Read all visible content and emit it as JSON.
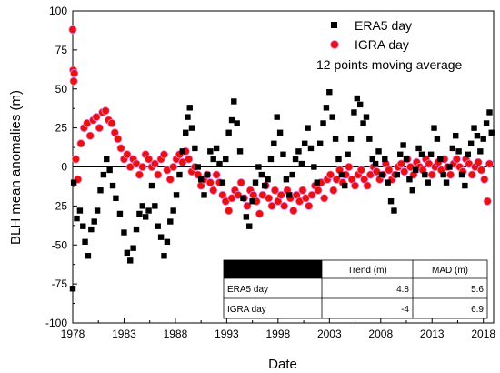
{
  "chart_data": {
    "type": "scatter",
    "xlabel": "Date",
    "ylabel": "BLH mean anomalies (m)",
    "xlim": [
      1978,
      2019
    ],
    "ylim": [
      -100,
      100
    ],
    "x_ticks": [
      1978,
      1983,
      1988,
      1993,
      1998,
      2003,
      2008,
      2013,
      2018
    ],
    "y_ticks": [
      100,
      75,
      50,
      25,
      0,
      -25,
      -50,
      -75,
      -100
    ],
    "legend": {
      "position": "top-right",
      "entries": [
        "ERA5 day",
        "IGRA day"
      ],
      "note": "12 points moving average"
    },
    "series": [
      {
        "name": "ERA5 day",
        "marker": "square",
        "color": "#000000",
        "points": [
          [
            1978.0,
            -78
          ],
          [
            1978.1,
            -10
          ],
          [
            1978.4,
            -33
          ],
          [
            1978.7,
            -28
          ],
          [
            1979.0,
            -38
          ],
          [
            1979.2,
            -48
          ],
          [
            1979.5,
            -57
          ],
          [
            1979.8,
            -40
          ],
          [
            1980.1,
            -35
          ],
          [
            1980.4,
            -28
          ],
          [
            1980.7,
            -15
          ],
          [
            1981.0,
            -5
          ],
          [
            1981.3,
            5
          ],
          [
            1981.6,
            -2
          ],
          [
            1981.9,
            -12
          ],
          [
            1982.2,
            -20
          ],
          [
            1982.6,
            -30
          ],
          [
            1983.0,
            -42
          ],
          [
            1983.3,
            -55
          ],
          [
            1983.6,
            -60
          ],
          [
            1983.9,
            -52
          ],
          [
            1984.2,
            -40
          ],
          [
            1984.5,
            -30
          ],
          [
            1984.8,
            -25
          ],
          [
            1985.1,
            -32
          ],
          [
            1985.4,
            -28
          ],
          [
            1985.7,
            -12
          ],
          [
            1986.0,
            -25
          ],
          [
            1986.3,
            -38
          ],
          [
            1986.6,
            -45
          ],
          [
            1986.9,
            -57
          ],
          [
            1987.2,
            -48
          ],
          [
            1987.5,
            -35
          ],
          [
            1987.8,
            -28
          ],
          [
            1988.1,
            -18
          ],
          [
            1988.4,
            -5
          ],
          [
            1988.7,
            10
          ],
          [
            1989.0,
            22
          ],
          [
            1989.2,
            32
          ],
          [
            1989.4,
            38
          ],
          [
            1989.6,
            25
          ],
          [
            1989.9,
            12
          ],
          [
            1990.2,
            0
          ],
          [
            1990.5,
            -8
          ],
          [
            1990.8,
            -18
          ],
          [
            1991.1,
            -5
          ],
          [
            1991.4,
            10
          ],
          [
            1991.7,
            5
          ],
          [
            1992.0,
            12
          ],
          [
            1992.3,
            2
          ],
          [
            1992.6,
            -10
          ],
          [
            1992.9,
            5
          ],
          [
            1993.2,
            22
          ],
          [
            1993.5,
            30
          ],
          [
            1993.7,
            42
          ],
          [
            1994.0,
            28
          ],
          [
            1994.3,
            10
          ],
          [
            1994.6,
            -20
          ],
          [
            1994.9,
            -32
          ],
          [
            1995.2,
            -38
          ],
          [
            1995.5,
            -22
          ],
          [
            1995.8,
            -10
          ],
          [
            1996.1,
            0
          ],
          [
            1996.4,
            -5
          ],
          [
            1996.7,
            -12
          ],
          [
            1997.0,
            -8
          ],
          [
            1997.3,
            5
          ],
          [
            1997.6,
            15
          ],
          [
            1997.9,
            32
          ],
          [
            1998.2,
            22
          ],
          [
            1998.5,
            8
          ],
          [
            1998.8,
            -8
          ],
          [
            1999.1,
            -18
          ],
          [
            1999.4,
            -5
          ],
          [
            1999.7,
            5
          ],
          [
            2000.0,
            10
          ],
          [
            2000.3,
            2
          ],
          [
            2000.6,
            15
          ],
          [
            2000.9,
            25
          ],
          [
            2001.2,
            12
          ],
          [
            2001.5,
            0
          ],
          [
            2001.8,
            -10
          ],
          [
            2002.1,
            15
          ],
          [
            2002.4,
            28
          ],
          [
            2002.7,
            38
          ],
          [
            2003.0,
            48
          ],
          [
            2003.3,
            32
          ],
          [
            2003.6,
            18
          ],
          [
            2003.9,
            5
          ],
          [
            2004.2,
            -5
          ],
          [
            2004.5,
            -12
          ],
          [
            2004.8,
            8
          ],
          [
            2005.1,
            18
          ],
          [
            2005.4,
            35
          ],
          [
            2005.7,
            44
          ],
          [
            2006.0,
            40
          ],
          [
            2006.3,
            28
          ],
          [
            2006.6,
            32
          ],
          [
            2006.9,
            18
          ],
          [
            2007.2,
            5
          ],
          [
            2007.5,
            2
          ],
          [
            2007.8,
            10
          ],
          [
            2008.1,
            -5
          ],
          [
            2008.4,
            5
          ],
          [
            2008.7,
            -10
          ],
          [
            2009.0,
            -22
          ],
          [
            2009.3,
            -28
          ],
          [
            2009.6,
            -5
          ],
          [
            2009.9,
            8
          ],
          [
            2010.2,
            14
          ],
          [
            2010.5,
            5
          ],
          [
            2010.8,
            -8
          ],
          [
            2011.1,
            -15
          ],
          [
            2011.4,
            -2
          ],
          [
            2011.7,
            12
          ],
          [
            2012.0,
            8
          ],
          [
            2012.3,
            -5
          ],
          [
            2012.6,
            -10
          ],
          [
            2012.9,
            8
          ],
          [
            2013.2,
            25
          ],
          [
            2013.5,
            18
          ],
          [
            2013.8,
            5
          ],
          [
            2014.1,
            -5
          ],
          [
            2014.4,
            -10
          ],
          [
            2014.7,
            0
          ],
          [
            2015.0,
            12
          ],
          [
            2015.3,
            20
          ],
          [
            2015.6,
            10
          ],
          [
            2015.9,
            -5
          ],
          [
            2016.2,
            -12
          ],
          [
            2016.5,
            8
          ],
          [
            2016.8,
            15
          ],
          [
            2017.1,
            25
          ],
          [
            2017.4,
            20
          ],
          [
            2017.7,
            10
          ],
          [
            2018.0,
            18
          ],
          [
            2018.3,
            28
          ],
          [
            2018.6,
            35
          ],
          [
            2018.8,
            22
          ]
        ]
      },
      {
        "name": "IGRA day",
        "marker": "circle",
        "color": "#e8120c",
        "points": [
          [
            1978.0,
            88
          ],
          [
            1978.05,
            62
          ],
          [
            1978.1,
            55
          ],
          [
            1978.15,
            60
          ],
          [
            1978.3,
            5
          ],
          [
            1978.5,
            -8
          ],
          [
            1978.8,
            15
          ],
          [
            1979.1,
            25
          ],
          [
            1979.4,
            28
          ],
          [
            1979.7,
            20
          ],
          [
            1980.0,
            30
          ],
          [
            1980.3,
            32
          ],
          [
            1980.6,
            25
          ],
          [
            1980.9,
            35
          ],
          [
            1981.2,
            36
          ],
          [
            1981.5,
            30
          ],
          [
            1981.8,
            28
          ],
          [
            1982.1,
            22
          ],
          [
            1982.4,
            18
          ],
          [
            1982.7,
            12
          ],
          [
            1983.0,
            5
          ],
          [
            1983.3,
            8
          ],
          [
            1983.6,
            0
          ],
          [
            1983.9,
            5
          ],
          [
            1984.2,
            2
          ],
          [
            1984.5,
            -5
          ],
          [
            1984.8,
            0
          ],
          [
            1985.1,
            8
          ],
          [
            1985.4,
            5
          ],
          [
            1985.7,
            0
          ],
          [
            1986.0,
            2
          ],
          [
            1986.3,
            -5
          ],
          [
            1986.6,
            5
          ],
          [
            1986.9,
            8
          ],
          [
            1987.2,
            -2
          ],
          [
            1987.5,
            -8
          ],
          [
            1987.8,
            0
          ],
          [
            1988.1,
            5
          ],
          [
            1988.4,
            8
          ],
          [
            1988.7,
            3
          ],
          [
            1989.0,
            10
          ],
          [
            1989.3,
            5
          ],
          [
            1989.6,
            -3
          ],
          [
            1989.9,
            0
          ],
          [
            1990.2,
            -5
          ],
          [
            1990.5,
            -12
          ],
          [
            1990.8,
            -8
          ],
          [
            1991.1,
            -5
          ],
          [
            1991.4,
            -10
          ],
          [
            1991.7,
            -15
          ],
          [
            1992.0,
            -5
          ],
          [
            1992.3,
            -10
          ],
          [
            1992.6,
            -18
          ],
          [
            1992.9,
            -22
          ],
          [
            1993.2,
            -28
          ],
          [
            1993.5,
            -20
          ],
          [
            1993.8,
            -15
          ],
          [
            1994.1,
            -18
          ],
          [
            1994.4,
            -10
          ],
          [
            1994.7,
            -20
          ],
          [
            1995.0,
            -25
          ],
          [
            1995.3,
            -15
          ],
          [
            1995.6,
            -18
          ],
          [
            1995.9,
            -22
          ],
          [
            1996.2,
            -30
          ],
          [
            1996.5,
            -18
          ],
          [
            1996.8,
            -12
          ],
          [
            1997.1,
            -20
          ],
          [
            1997.4,
            -25
          ],
          [
            1997.7,
            -15
          ],
          [
            1998.0,
            -22
          ],
          [
            1998.3,
            -18
          ],
          [
            1998.6,
            -25
          ],
          [
            1998.9,
            -15
          ],
          [
            1999.2,
            -20
          ],
          [
            1999.5,
            -28
          ],
          [
            1999.8,
            -18
          ],
          [
            2000.1,
            -22
          ],
          [
            2000.4,
            -15
          ],
          [
            2000.7,
            -20
          ],
          [
            2001.0,
            -25
          ],
          [
            2001.3,
            -18
          ],
          [
            2001.6,
            -12
          ],
          [
            2001.9,
            -15
          ],
          [
            2002.2,
            -10
          ],
          [
            2002.5,
            -20
          ],
          [
            2002.8,
            -8
          ],
          [
            2003.1,
            -5
          ],
          [
            2003.4,
            -15
          ],
          [
            2003.7,
            -8
          ],
          [
            2004.0,
            -2
          ],
          [
            2004.3,
            -10
          ],
          [
            2004.6,
            -5
          ],
          [
            2004.9,
            0
          ],
          [
            2005.2,
            -8
          ],
          [
            2005.5,
            -12
          ],
          [
            2005.8,
            -5
          ],
          [
            2006.1,
            -2
          ],
          [
            2006.4,
            -8
          ],
          [
            2006.7,
            -12
          ],
          [
            2007.0,
            -5
          ],
          [
            2007.3,
            0
          ],
          [
            2007.6,
            -3
          ],
          [
            2007.9,
            -8
          ],
          [
            2008.2,
            -5
          ],
          [
            2008.5,
            2
          ],
          [
            2008.8,
            -2
          ],
          [
            2009.1,
            -8
          ],
          [
            2009.4,
            -5
          ],
          [
            2009.7,
            0
          ],
          [
            2010.0,
            2
          ],
          [
            2010.3,
            -3
          ],
          [
            2010.6,
            5
          ],
          [
            2010.9,
            0
          ],
          [
            2011.2,
            -5
          ],
          [
            2011.5,
            3
          ],
          [
            2011.8,
            0
          ],
          [
            2012.1,
            -2
          ],
          [
            2012.4,
            5
          ],
          [
            2012.7,
            2
          ],
          [
            2013.0,
            -5
          ],
          [
            2013.3,
            0
          ],
          [
            2013.6,
            3
          ],
          [
            2013.9,
            -2
          ],
          [
            2014.2,
            5
          ],
          [
            2014.5,
            0
          ],
          [
            2014.8,
            -5
          ],
          [
            2015.1,
            2
          ],
          [
            2015.4,
            5
          ],
          [
            2015.7,
            0
          ],
          [
            2016.0,
            -3
          ],
          [
            2016.3,
            5
          ],
          [
            2016.6,
            2
          ],
          [
            2016.9,
            -5
          ],
          [
            2017.2,
            0
          ],
          [
            2017.5,
            3
          ],
          [
            2017.8,
            -2
          ],
          [
            2018.1,
            -8
          ],
          [
            2018.4,
            -22
          ],
          [
            2018.6,
            2
          ]
        ]
      }
    ]
  },
  "stats_table": {
    "headers": [
      "",
      "Trend (m)",
      "MAD (m)"
    ],
    "rows": [
      {
        "label": "ERA5 day",
        "trend": "4.8",
        "mad": "5.6"
      },
      {
        "label": "IGRA day",
        "trend": "-4",
        "mad": "6.9"
      }
    ]
  }
}
